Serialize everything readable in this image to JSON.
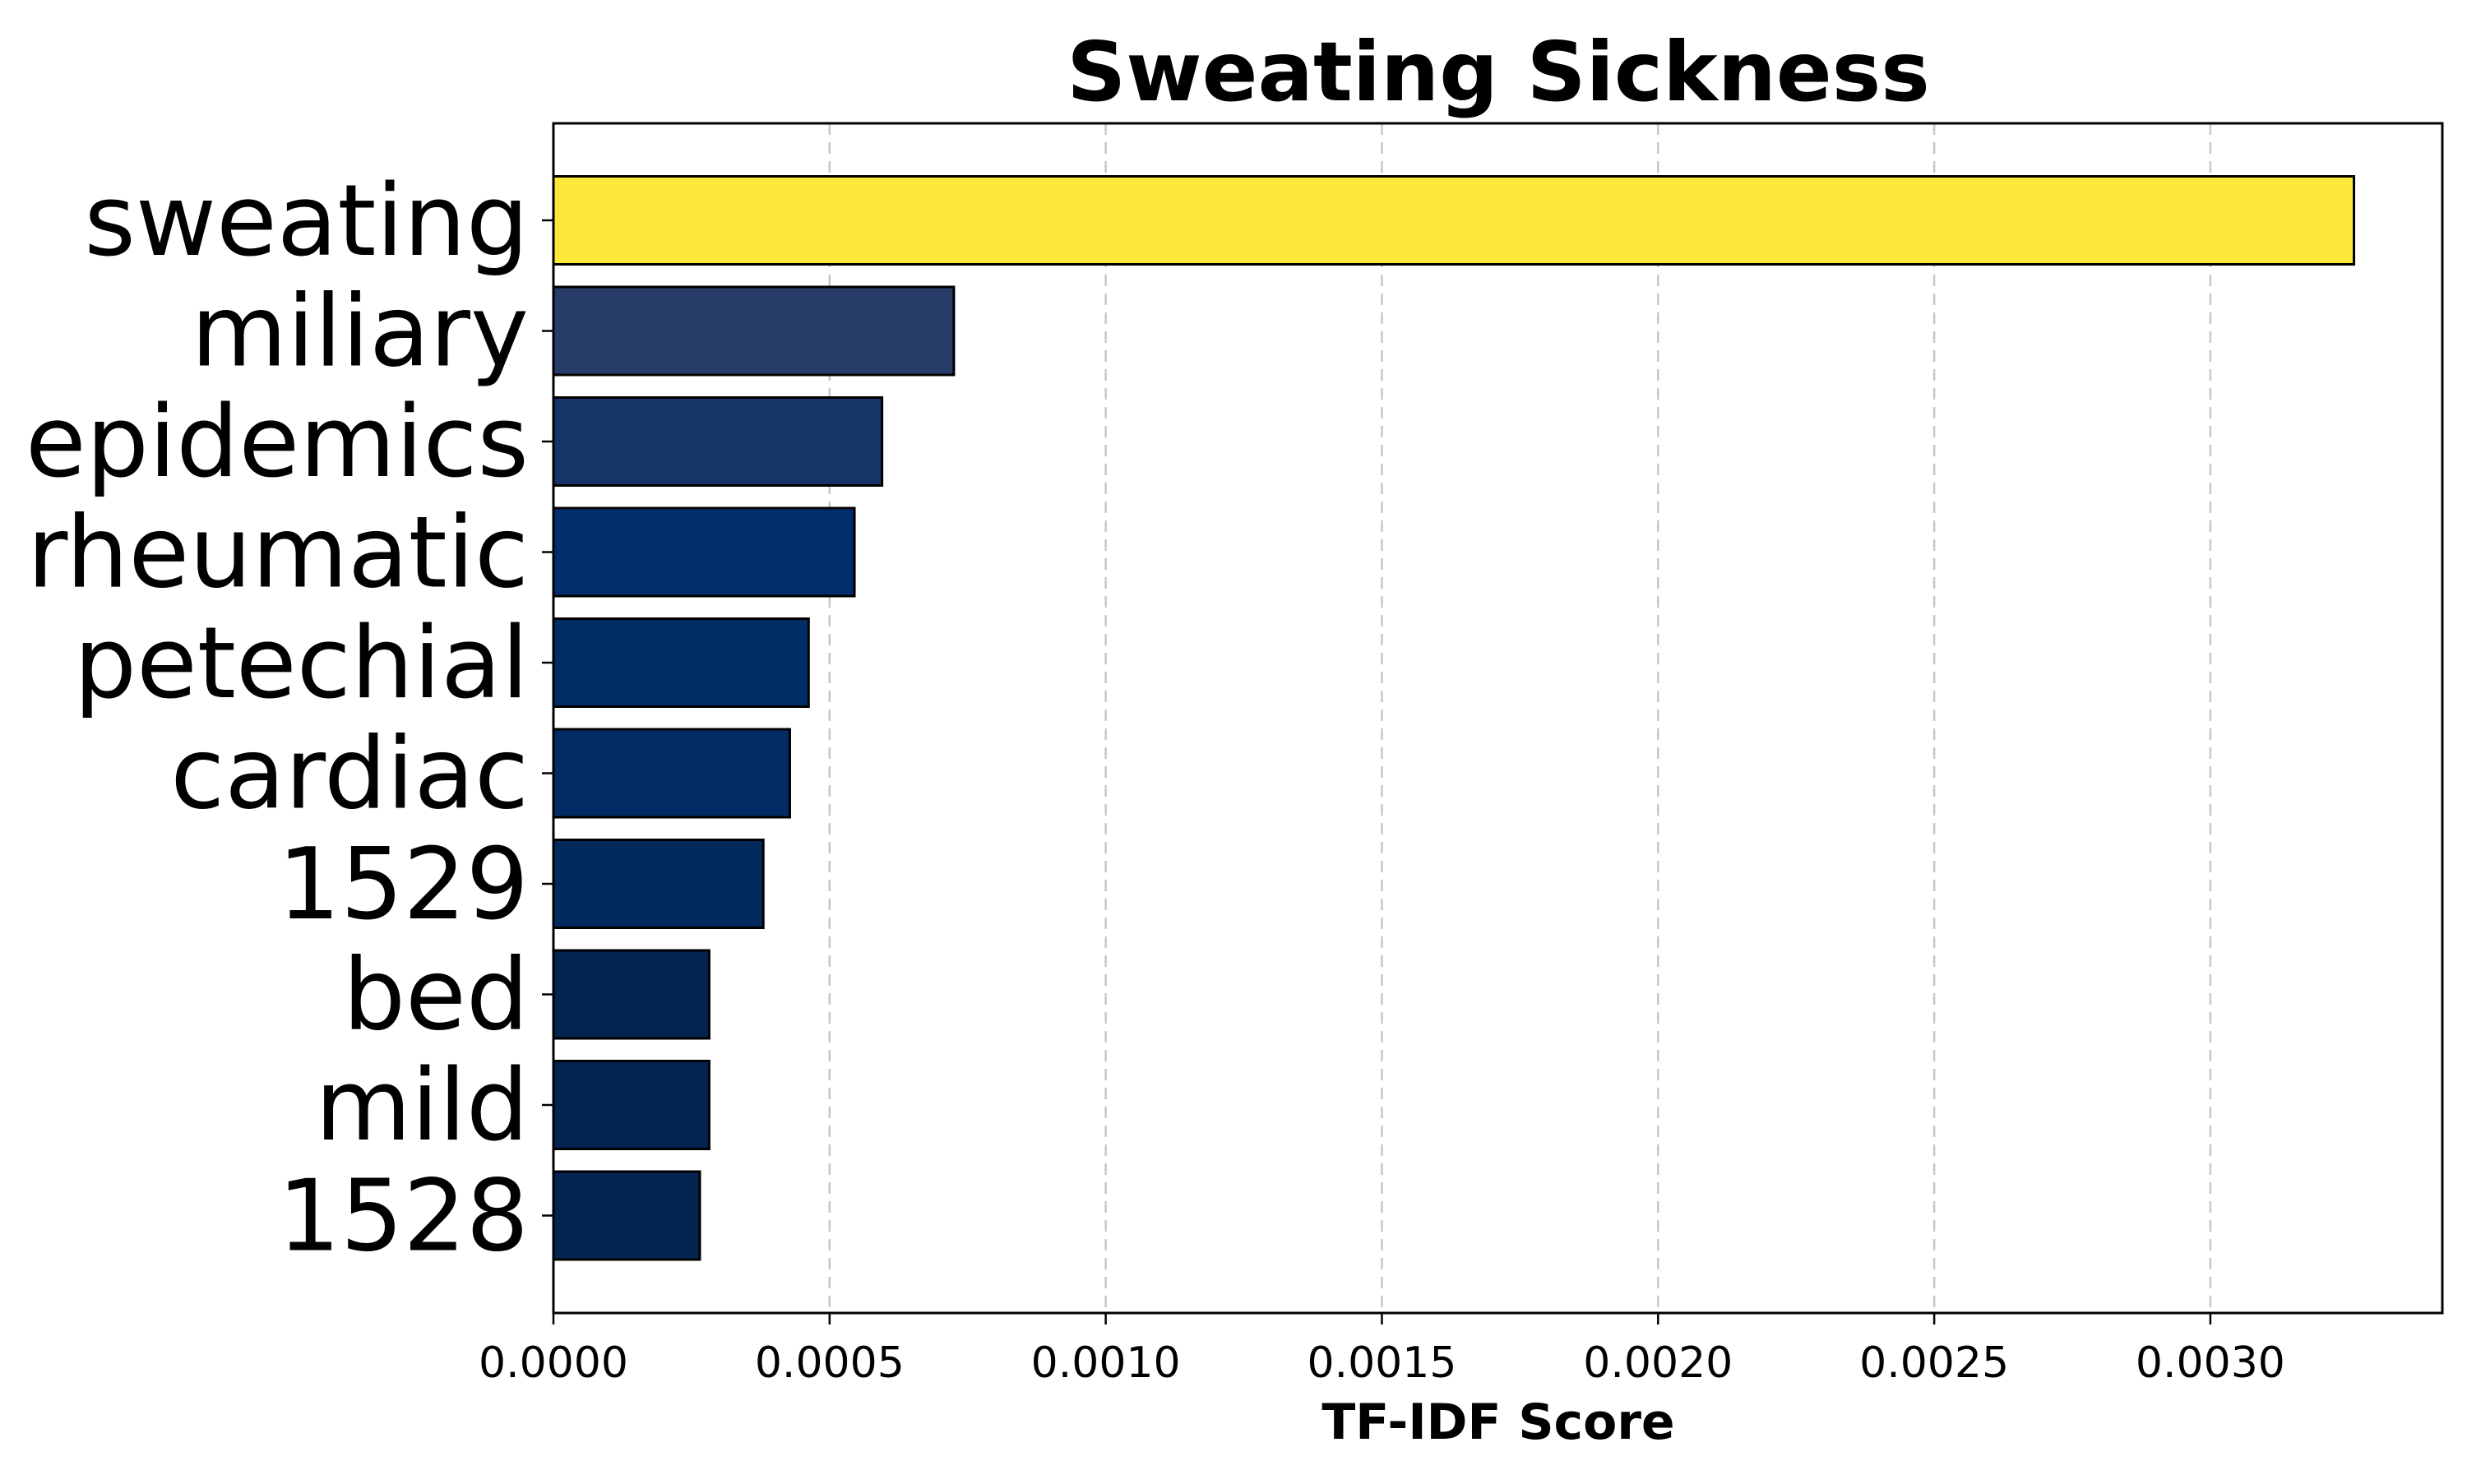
{
  "chart_data": {
    "type": "bar",
    "orientation": "horizontal",
    "title": "Sweating Sickness",
    "xlabel": "TF-IDF Score",
    "ylabel": "",
    "categories": [
      "sweating",
      "miliary",
      "epidemics",
      "rheumatic",
      "petechial",
      "cardiac",
      "1529",
      "bed",
      "mild",
      "1528"
    ],
    "values": [
      0.00326,
      0.000725,
      0.000595,
      0.000545,
      0.000462,
      0.000428,
      0.00038,
      0.000282,
      0.000282,
      0.000265
    ],
    "colors": [
      "#fde83a",
      "#283c6a",
      "#163468",
      "#012f6b",
      "#012d66",
      "#012b62",
      "#022a5d",
      "#032350",
      "#032350",
      "#032350"
    ],
    "xlim": [
      0,
      0.00342
    ],
    "xticks": [
      "0.0000",
      "0.0005",
      "0.0010",
      "0.0015",
      "0.0020",
      "0.0025",
      "0.0030"
    ],
    "xtick_values": [
      0,
      0.0005,
      0.001,
      0.0015,
      0.002,
      0.0025,
      0.003
    ],
    "grid": "vertical dashed",
    "legend": "none"
  }
}
